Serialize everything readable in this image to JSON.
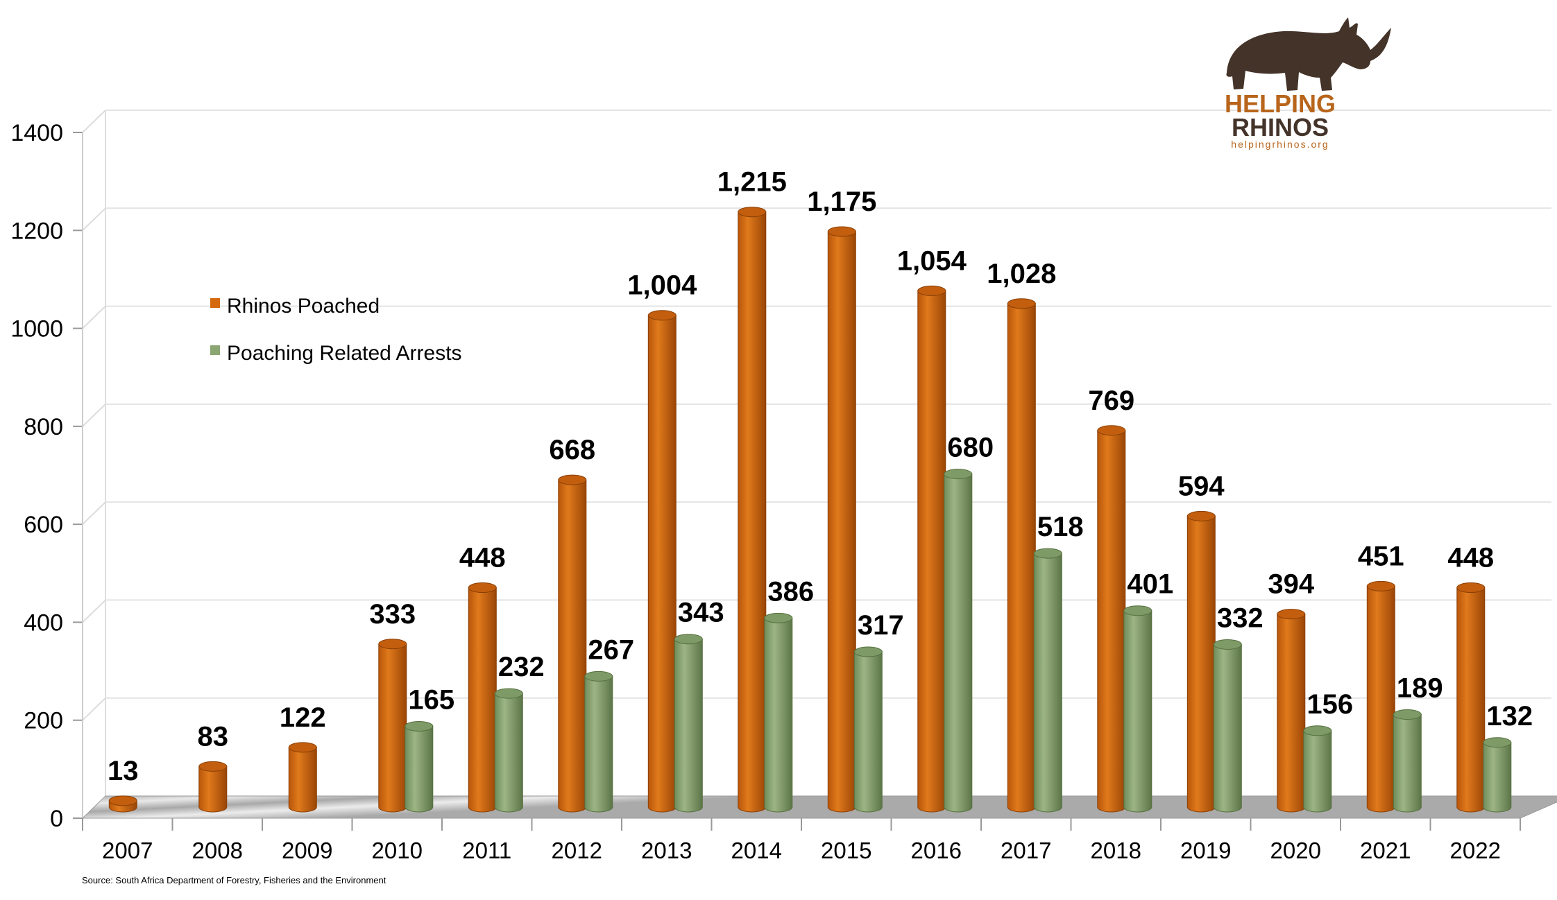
{
  "chart_data": {
    "type": "bar",
    "title": "",
    "xlabel": "",
    "ylabel": "",
    "ylim": [
      0,
      1400
    ],
    "yticks": [
      0,
      200,
      400,
      600,
      800,
      1000,
      1200,
      1400
    ],
    "grid": true,
    "legend_placement": "top-left",
    "categories": [
      "2007",
      "2008",
      "2009",
      "2010",
      "2011",
      "2012",
      "2013",
      "2014",
      "2015",
      "2016",
      "2017",
      "2018",
      "2019",
      "2020",
      "2021",
      "2022"
    ],
    "series": [
      {
        "name": "Rhinos Poached",
        "color": "#D4690F",
        "values": [
          13,
          83,
          122,
          333,
          448,
          668,
          1004,
          1215,
          1175,
          1054,
          1028,
          769,
          594,
          394,
          451,
          448
        ],
        "labels": [
          "13",
          "83",
          "122",
          "333",
          "448",
          "668",
          "1,004",
          "1,215",
          "1,175",
          "1,054",
          "1,028",
          "769",
          "594",
          "394",
          "451",
          "448"
        ]
      },
      {
        "name": "Poaching Related Arrests",
        "color": "#8BA673",
        "values": [
          null,
          null,
          null,
          165,
          232,
          267,
          343,
          386,
          317,
          680,
          518,
          401,
          332,
          156,
          189,
          132
        ],
        "labels": [
          "",
          "",
          "",
          "165",
          "232",
          "267",
          "343",
          "386",
          "317",
          "680",
          "518",
          "401",
          "332",
          "156",
          "189",
          "132"
        ]
      }
    ],
    "source": "Source: South Africa Department of Forestry, Fisheries and the Environment"
  },
  "logo": {
    "line1": "HELPING",
    "line2": "RHINOS",
    "url": "helpingrhinos.org",
    "color1": "#B8651B",
    "color2": "#433329"
  }
}
